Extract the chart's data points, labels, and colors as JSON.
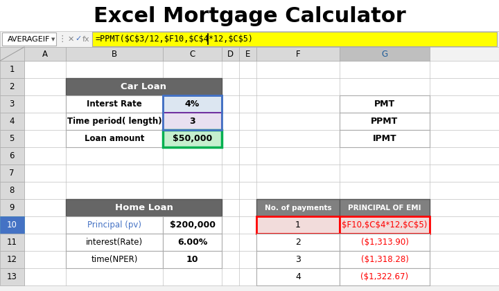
{
  "title": "Excel Mortgage Calculator",
  "title_fontsize": 22,
  "title_fontweight": "bold",
  "bg_color": "#f2f2f2",
  "formula_bar": {
    "name_box": "AVERAGEIF",
    "formula": "=PPMT($C$3/12,$F10,$C$4*12,$C$5)"
  },
  "col_labels": [
    "A",
    "B",
    "C",
    "D",
    "E",
    "F",
    "G"
  ],
  "row_labels": [
    "1",
    "2",
    "3",
    "4",
    "5",
    "6",
    "7",
    "8",
    "9",
    "10",
    "11",
    "12",
    "13"
  ],
  "car_loan_header": "Car Loan",
  "car_loan_rows": [
    [
      "Interst Rate",
      "4%"
    ],
    [
      "Time period( length)",
      "3"
    ],
    [
      "Loan amount",
      "$50,000"
    ]
  ],
  "pmt_rows": [
    "PMT",
    "PPMT",
    "IPMT"
  ],
  "home_loan_header": "Home Loan",
  "home_loan_rows": [
    [
      "Principal (pv)",
      "$200,000"
    ],
    [
      "interest(Rate)",
      "6.00%"
    ],
    [
      "time(NPER)",
      "10"
    ]
  ],
  "home_loan_label_colors": [
    "#4472c4",
    "#000000",
    "#000000"
  ],
  "emi_col1_header": "No. of payments",
  "emi_col2_header": "PRINCIPAL OF EMI",
  "emi_rows": [
    [
      "1",
      "$F10,$C$4*12,$C$5)"
    ],
    [
      "2",
      "($1,313.90)"
    ],
    [
      "3",
      "($1,318.28)"
    ],
    [
      "4",
      "($1,322.67)"
    ]
  ],
  "header_gray": "#666666",
  "emi_header_gray": "#808080",
  "selected_bg": "#dce6f1",
  "selected_border": "#4472c4",
  "green_bg": "#c6efce",
  "green_border": "#00b050",
  "emi_row1_bg": "#f2dcdb",
  "emi_row1_border": "#ff0000",
  "emi_value_color": "#ff0000",
  "col_header_bg": "#d9d9d9",
  "col_header_selected_bg": "#bfbfbf",
  "row_header_bg": "#d9d9d9",
  "row_selected_bg": "#4472c4",
  "row_selected_color": "#ffffff",
  "grid_color": "#c0c0c0"
}
